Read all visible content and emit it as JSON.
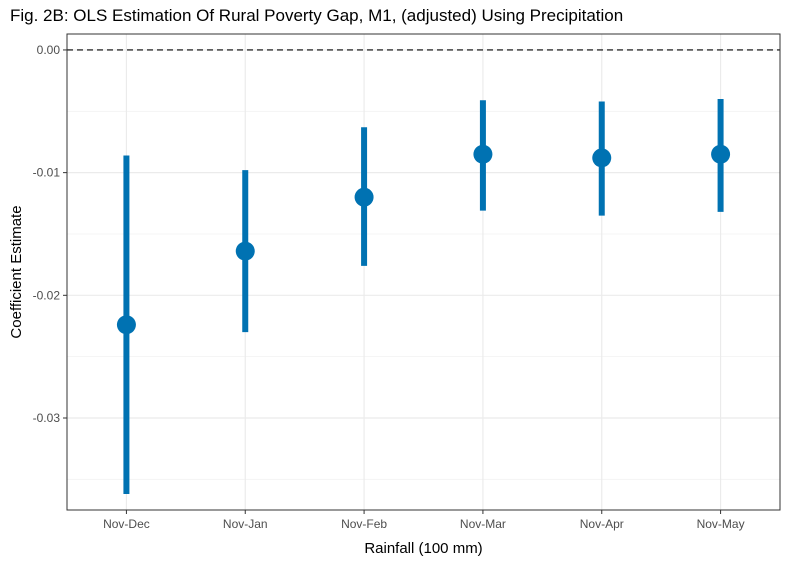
{
  "chart_data": {
    "type": "scatter",
    "title": "Fig. 2B: OLS Estimation Of Rural Poverty Gap, M1, (adjusted) Using Precipitation",
    "xlabel": "Rainfall (100 mm)",
    "ylabel": "Coefficient Estimate",
    "categories": [
      "Nov-Dec",
      "Nov-Jan",
      "Nov-Feb",
      "Nov-Mar",
      "Nov-Apr",
      "Nov-May"
    ],
    "estimates": [
      -0.0224,
      -0.0164,
      -0.012,
      -0.0085,
      -0.0088,
      -0.0085
    ],
    "ci_lower": [
      -0.0362,
      -0.023,
      -0.0176,
      -0.0131,
      -0.0135,
      -0.0132
    ],
    "ci_upper": [
      -0.0086,
      -0.0098,
      -0.0063,
      -0.0041,
      -0.0042,
      -0.004
    ],
    "yticks": [
      0.0,
      -0.01,
      -0.02,
      -0.03
    ],
    "ytick_labels": [
      "0.00",
      "-0.01",
      "-0.02",
      "-0.03"
    ],
    "ylim": [
      -0.0375,
      0.0013
    ],
    "reference_line": 0.0,
    "grid": true,
    "color": "#0072b2"
  }
}
